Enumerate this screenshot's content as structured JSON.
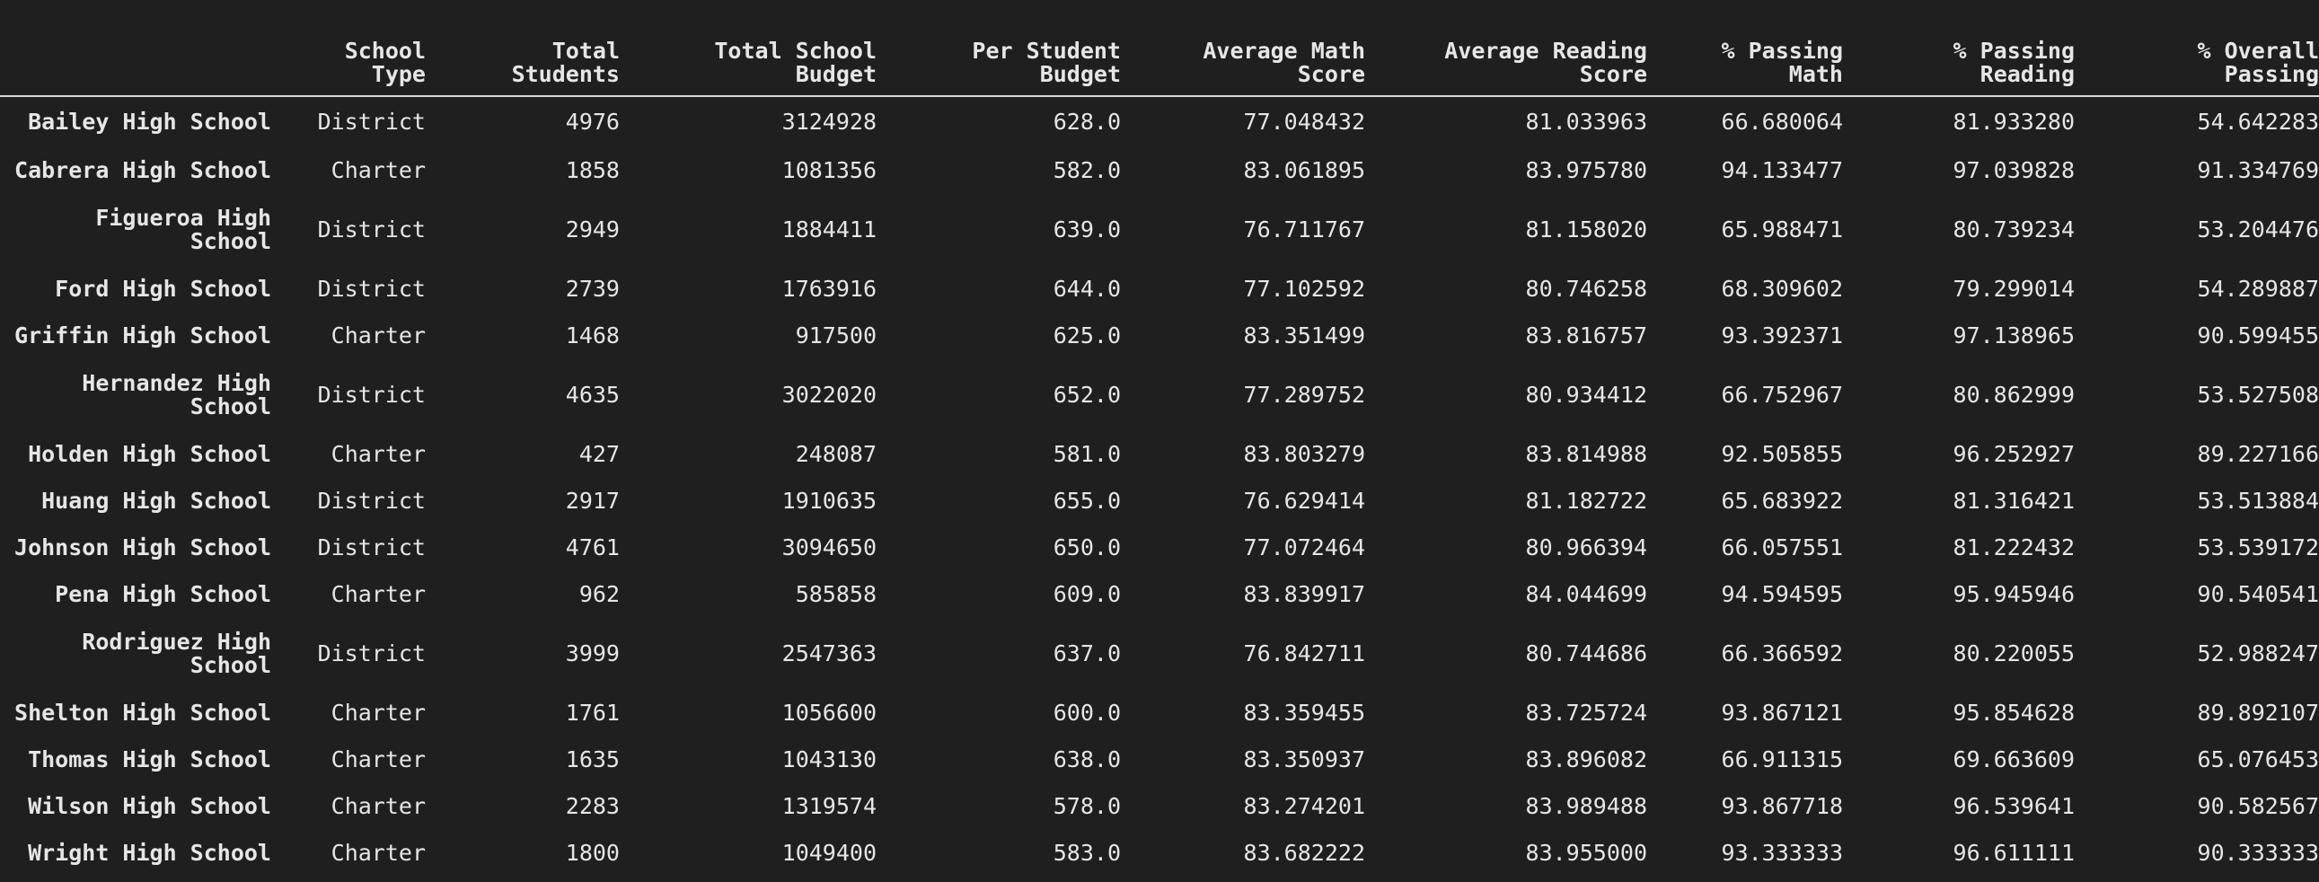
{
  "table": {
    "headers": [
      "",
      "School Type",
      "Total Students",
      "Total School Budget",
      "Per Student Budget",
      "Average Math Score",
      "Average Reading Score",
      "% Passing Math",
      "% Passing Reading",
      "% Overall Passing"
    ],
    "header_lines": [
      [
        "",
        ""
      ],
      [
        "School",
        "Type"
      ],
      [
        "Total",
        "Students"
      ],
      [
        "Total School",
        "Budget"
      ],
      [
        "Per Student",
        "Budget"
      ],
      [
        "Average Math",
        "Score"
      ],
      [
        "Average Reading",
        "Score"
      ],
      [
        "% Passing",
        "Math"
      ],
      [
        "% Passing",
        "Reading"
      ],
      [
        "% Overall",
        "Passing"
      ]
    ],
    "rows": [
      {
        "name": "Bailey High School",
        "name_lines": [
          "Bailey High School"
        ],
        "type": "District",
        "students": "4976",
        "budget": "3124928",
        "per_student": "628.0",
        "math": "77.048432",
        "reading": "81.033963",
        "pass_math": "66.680064",
        "pass_reading": "81.933280",
        "overall": "54.642283"
      },
      {
        "name": "Cabrera High School",
        "name_lines": [
          "Cabrera High School"
        ],
        "type": "Charter",
        "students": "1858",
        "budget": "1081356",
        "per_student": "582.0",
        "math": "83.061895",
        "reading": "83.975780",
        "pass_math": "94.133477",
        "pass_reading": "97.039828",
        "overall": "91.334769"
      },
      {
        "name": "Figueroa High School",
        "name_lines": [
          "Figueroa High",
          "School"
        ],
        "type": "District",
        "students": "2949",
        "budget": "1884411",
        "per_student": "639.0",
        "math": "76.711767",
        "reading": "81.158020",
        "pass_math": "65.988471",
        "pass_reading": "80.739234",
        "overall": "53.204476"
      },
      {
        "name": "Ford High School",
        "name_lines": [
          "Ford High School"
        ],
        "type": "District",
        "students": "2739",
        "budget": "1763916",
        "per_student": "644.0",
        "math": "77.102592",
        "reading": "80.746258",
        "pass_math": "68.309602",
        "pass_reading": "79.299014",
        "overall": "54.289887"
      },
      {
        "name": "Griffin High School",
        "name_lines": [
          "Griffin High School"
        ],
        "type": "Charter",
        "students": "1468",
        "budget": "917500",
        "per_student": "625.0",
        "math": "83.351499",
        "reading": "83.816757",
        "pass_math": "93.392371",
        "pass_reading": "97.138965",
        "overall": "90.599455"
      },
      {
        "name": "Hernandez High School",
        "name_lines": [
          "Hernandez High",
          "School"
        ],
        "type": "District",
        "students": "4635",
        "budget": "3022020",
        "per_student": "652.0",
        "math": "77.289752",
        "reading": "80.934412",
        "pass_math": "66.752967",
        "pass_reading": "80.862999",
        "overall": "53.527508"
      },
      {
        "name": "Holden High School",
        "name_lines": [
          "Holden High School"
        ],
        "type": "Charter",
        "students": "427",
        "budget": "248087",
        "per_student": "581.0",
        "math": "83.803279",
        "reading": "83.814988",
        "pass_math": "92.505855",
        "pass_reading": "96.252927",
        "overall": "89.227166"
      },
      {
        "name": "Huang High School",
        "name_lines": [
          "Huang High School"
        ],
        "type": "District",
        "students": "2917",
        "budget": "1910635",
        "per_student": "655.0",
        "math": "76.629414",
        "reading": "81.182722",
        "pass_math": "65.683922",
        "pass_reading": "81.316421",
        "overall": "53.513884"
      },
      {
        "name": "Johnson High School",
        "name_lines": [
          "Johnson High School"
        ],
        "type": "District",
        "students": "4761",
        "budget": "3094650",
        "per_student": "650.0",
        "math": "77.072464",
        "reading": "80.966394",
        "pass_math": "66.057551",
        "pass_reading": "81.222432",
        "overall": "53.539172"
      },
      {
        "name": "Pena High School",
        "name_lines": [
          "Pena High School"
        ],
        "type": "Charter",
        "students": "962",
        "budget": "585858",
        "per_student": "609.0",
        "math": "83.839917",
        "reading": "84.044699",
        "pass_math": "94.594595",
        "pass_reading": "95.945946",
        "overall": "90.540541"
      },
      {
        "name": "Rodriguez High School",
        "name_lines": [
          "Rodriguez High",
          "School"
        ],
        "type": "District",
        "students": "3999",
        "budget": "2547363",
        "per_student": "637.0",
        "math": "76.842711",
        "reading": "80.744686",
        "pass_math": "66.366592",
        "pass_reading": "80.220055",
        "overall": "52.988247"
      },
      {
        "name": "Shelton High School",
        "name_lines": [
          "Shelton High School"
        ],
        "type": "Charter",
        "students": "1761",
        "budget": "1056600",
        "per_student": "600.0",
        "math": "83.359455",
        "reading": "83.725724",
        "pass_math": "93.867121",
        "pass_reading": "95.854628",
        "overall": "89.892107"
      },
      {
        "name": "Thomas High School",
        "name_lines": [
          "Thomas High School"
        ],
        "type": "Charter",
        "students": "1635",
        "budget": "1043130",
        "per_student": "638.0",
        "math": "83.350937",
        "reading": "83.896082",
        "pass_math": "66.911315",
        "pass_reading": "69.663609",
        "overall": "65.076453"
      },
      {
        "name": "Wilson High School",
        "name_lines": [
          "Wilson High School"
        ],
        "type": "Charter",
        "students": "2283",
        "budget": "1319574",
        "per_student": "578.0",
        "math": "83.274201",
        "reading": "83.989488",
        "pass_math": "93.867718",
        "pass_reading": "96.539641",
        "overall": "90.582567"
      },
      {
        "name": "Wright High School",
        "name_lines": [
          "Wright High School"
        ],
        "type": "Charter",
        "students": "1800",
        "budget": "1049400",
        "per_student": "583.0",
        "math": "83.682222",
        "reading": "83.955000",
        "pass_math": "93.333333",
        "pass_reading": "96.611111",
        "overall": "90.333333"
      }
    ]
  }
}
